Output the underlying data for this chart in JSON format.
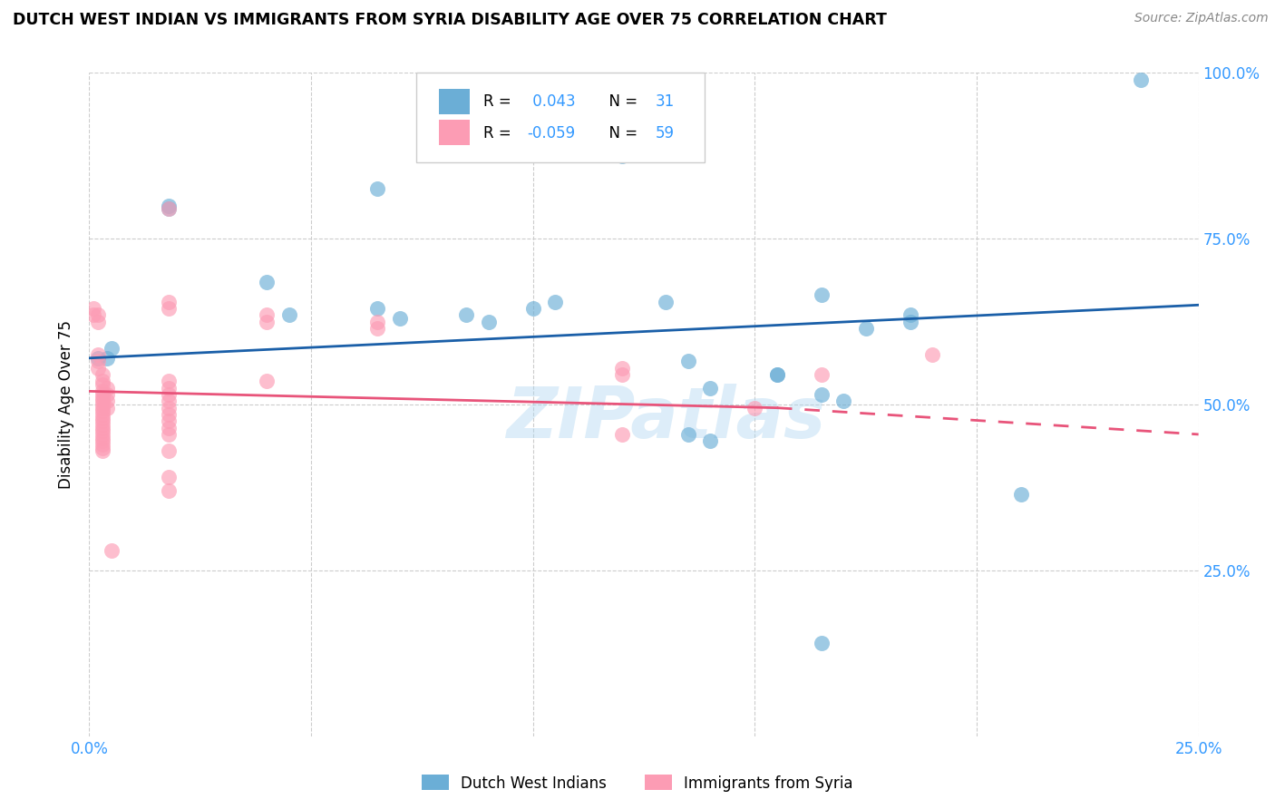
{
  "title": "DUTCH WEST INDIAN VS IMMIGRANTS FROM SYRIA DISABILITY AGE OVER 75 CORRELATION CHART",
  "source": "Source: ZipAtlas.com",
  "ylabel": "Disability Age Over 75",
  "xlim": [
    0.0,
    0.25
  ],
  "ylim": [
    0.0,
    1.0
  ],
  "blue_color": "#6baed6",
  "pink_color": "#fc9cb4",
  "blue_line_color": "#1a5fa8",
  "pink_line_color": "#e8547a",
  "watermark": "ZIPatlas",
  "blue_line": [
    0.0,
    0.57,
    0.25,
    0.65
  ],
  "pink_line_solid": [
    0.0,
    0.52,
    0.155,
    0.495
  ],
  "pink_line_dash": [
    0.155,
    0.495,
    0.25,
    0.455
  ],
  "blue_points": [
    [
      0.002,
      0.57
    ],
    [
      0.004,
      0.57
    ],
    [
      0.005,
      0.585
    ],
    [
      0.018,
      0.8
    ],
    [
      0.018,
      0.795
    ],
    [
      0.04,
      0.685
    ],
    [
      0.065,
      0.825
    ],
    [
      0.12,
      0.875
    ],
    [
      0.045,
      0.635
    ],
    [
      0.065,
      0.645
    ],
    [
      0.07,
      0.63
    ],
    [
      0.085,
      0.635
    ],
    [
      0.09,
      0.625
    ],
    [
      0.1,
      0.645
    ],
    [
      0.105,
      0.655
    ],
    [
      0.13,
      0.655
    ],
    [
      0.165,
      0.665
    ],
    [
      0.185,
      0.635
    ],
    [
      0.185,
      0.625
    ],
    [
      0.135,
      0.565
    ],
    [
      0.14,
      0.525
    ],
    [
      0.165,
      0.515
    ],
    [
      0.17,
      0.505
    ],
    [
      0.135,
      0.455
    ],
    [
      0.14,
      0.445
    ],
    [
      0.21,
      0.365
    ],
    [
      0.175,
      0.615
    ],
    [
      0.237,
      0.99
    ],
    [
      0.155,
      0.545
    ],
    [
      0.155,
      0.545
    ],
    [
      0.165,
      0.14
    ]
  ],
  "pink_points": [
    [
      0.001,
      0.645
    ],
    [
      0.001,
      0.635
    ],
    [
      0.002,
      0.635
    ],
    [
      0.002,
      0.625
    ],
    [
      0.002,
      0.575
    ],
    [
      0.002,
      0.565
    ],
    [
      0.002,
      0.555
    ],
    [
      0.003,
      0.545
    ],
    [
      0.003,
      0.535
    ],
    [
      0.003,
      0.53
    ],
    [
      0.003,
      0.52
    ],
    [
      0.003,
      0.515
    ],
    [
      0.003,
      0.51
    ],
    [
      0.003,
      0.505
    ],
    [
      0.003,
      0.5
    ],
    [
      0.003,
      0.495
    ],
    [
      0.003,
      0.49
    ],
    [
      0.003,
      0.485
    ],
    [
      0.003,
      0.48
    ],
    [
      0.003,
      0.475
    ],
    [
      0.003,
      0.47
    ],
    [
      0.003,
      0.465
    ],
    [
      0.003,
      0.46
    ],
    [
      0.003,
      0.455
    ],
    [
      0.003,
      0.45
    ],
    [
      0.003,
      0.445
    ],
    [
      0.003,
      0.44
    ],
    [
      0.003,
      0.435
    ],
    [
      0.003,
      0.43
    ],
    [
      0.004,
      0.525
    ],
    [
      0.004,
      0.515
    ],
    [
      0.004,
      0.505
    ],
    [
      0.004,
      0.495
    ],
    [
      0.018,
      0.795
    ],
    [
      0.018,
      0.655
    ],
    [
      0.018,
      0.645
    ],
    [
      0.018,
      0.535
    ],
    [
      0.018,
      0.525
    ],
    [
      0.018,
      0.515
    ],
    [
      0.018,
      0.505
    ],
    [
      0.018,
      0.495
    ],
    [
      0.018,
      0.485
    ],
    [
      0.018,
      0.475
    ],
    [
      0.018,
      0.465
    ],
    [
      0.018,
      0.455
    ],
    [
      0.018,
      0.43
    ],
    [
      0.018,
      0.39
    ],
    [
      0.018,
      0.37
    ],
    [
      0.04,
      0.635
    ],
    [
      0.04,
      0.625
    ],
    [
      0.04,
      0.535
    ],
    [
      0.065,
      0.625
    ],
    [
      0.065,
      0.615
    ],
    [
      0.12,
      0.555
    ],
    [
      0.12,
      0.545
    ],
    [
      0.12,
      0.455
    ],
    [
      0.15,
      0.495
    ],
    [
      0.005,
      0.28
    ],
    [
      0.165,
      0.545
    ],
    [
      0.19,
      0.575
    ]
  ]
}
